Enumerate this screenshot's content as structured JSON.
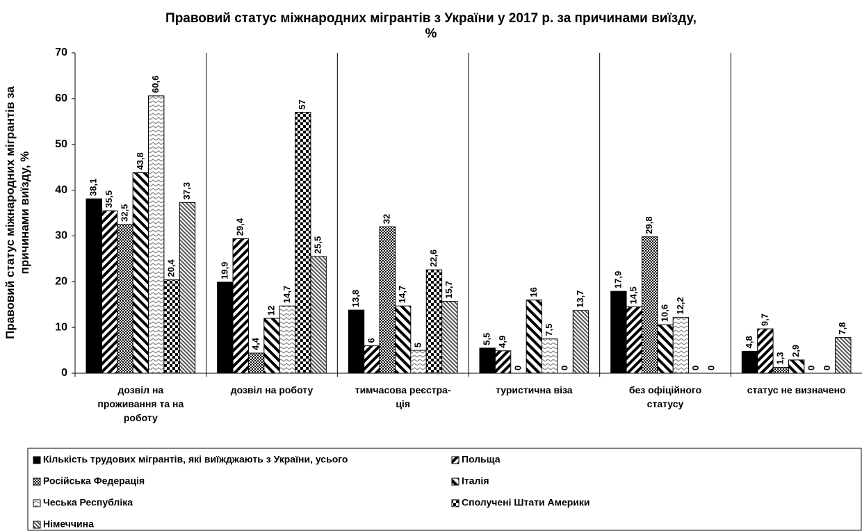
{
  "chart_data": {
    "type": "bar",
    "title": "Правовий статус міжнародних мігрантів з України у 2017 р. за причинами виїзду,\n%",
    "y_label": "Правовий статус міжнародних мігрантів за\nпричинами виїзду, %",
    "categories": [
      "дозвіл на\nпроживання та на\nроботу",
      "дозвіл на роботу",
      "тимчасова реєстра-\nція",
      "туристична віза",
      "без офіційного\nстатусу",
      "статус не визначено"
    ],
    "series": [
      {
        "name": "Кількість трудових мігрантів, які виїжджають з України, усього",
        "pattern": "solid",
        "values": [
          38.1,
          19.9,
          13.8,
          5.5,
          17.9,
          4.8
        ],
        "value_labels": [
          "38,1",
          "19,9",
          "13,8",
          "5,5",
          "17,9",
          "4,8"
        ]
      },
      {
        "name": "Польща",
        "pattern": "diagonal-down",
        "values": [
          35.5,
          29.4,
          6,
          4.9,
          14.5,
          9.7
        ],
        "value_labels": [
          "35,5",
          "29,4",
          "6",
          "4,9",
          "14,5",
          "9,7"
        ]
      },
      {
        "name": "Російська Федерація",
        "pattern": "check-small",
        "values": [
          32.5,
          4.4,
          32,
          0,
          29.8,
          1.3
        ],
        "value_labels": [
          "32,5",
          "4,4",
          "32",
          "0",
          "29,8",
          "1,3"
        ]
      },
      {
        "name": "Італія",
        "pattern": "diagonal-up",
        "values": [
          43.8,
          12,
          14.7,
          16,
          10.6,
          2.9
        ],
        "value_labels": [
          "43,8",
          "12",
          "14,7",
          "16",
          "10,6",
          "2,9"
        ]
      },
      {
        "name": "Чеська Республіка",
        "pattern": "zigzag",
        "values": [
          60.6,
          14.7,
          5,
          7.5,
          12.2,
          0
        ],
        "value_labels": [
          "60,6",
          "14,7",
          "5",
          "7,5",
          "12,2",
          "0"
        ]
      },
      {
        "name": "Сполучені Штати Америки",
        "pattern": "check-large",
        "values": [
          20.4,
          57,
          22.6,
          0,
          0,
          0
        ],
        "value_labels": [
          "20,4",
          "57",
          "22,6",
          "0",
          "0",
          "0"
        ]
      },
      {
        "name": "Німеччина",
        "pattern": "diagonal-fine",
        "values": [
          37.3,
          25.5,
          15.7,
          13.7,
          0,
          7.8
        ],
        "value_labels": [
          "37,3",
          "25,5",
          "15,7",
          "13,7",
          "0",
          "7,8"
        ]
      }
    ],
    "ylim": [
      0,
      70
    ],
    "yticks": [
      0,
      10,
      20,
      30,
      40,
      50,
      60,
      70
    ],
    "grid": "vertical",
    "legend": "bottom"
  }
}
